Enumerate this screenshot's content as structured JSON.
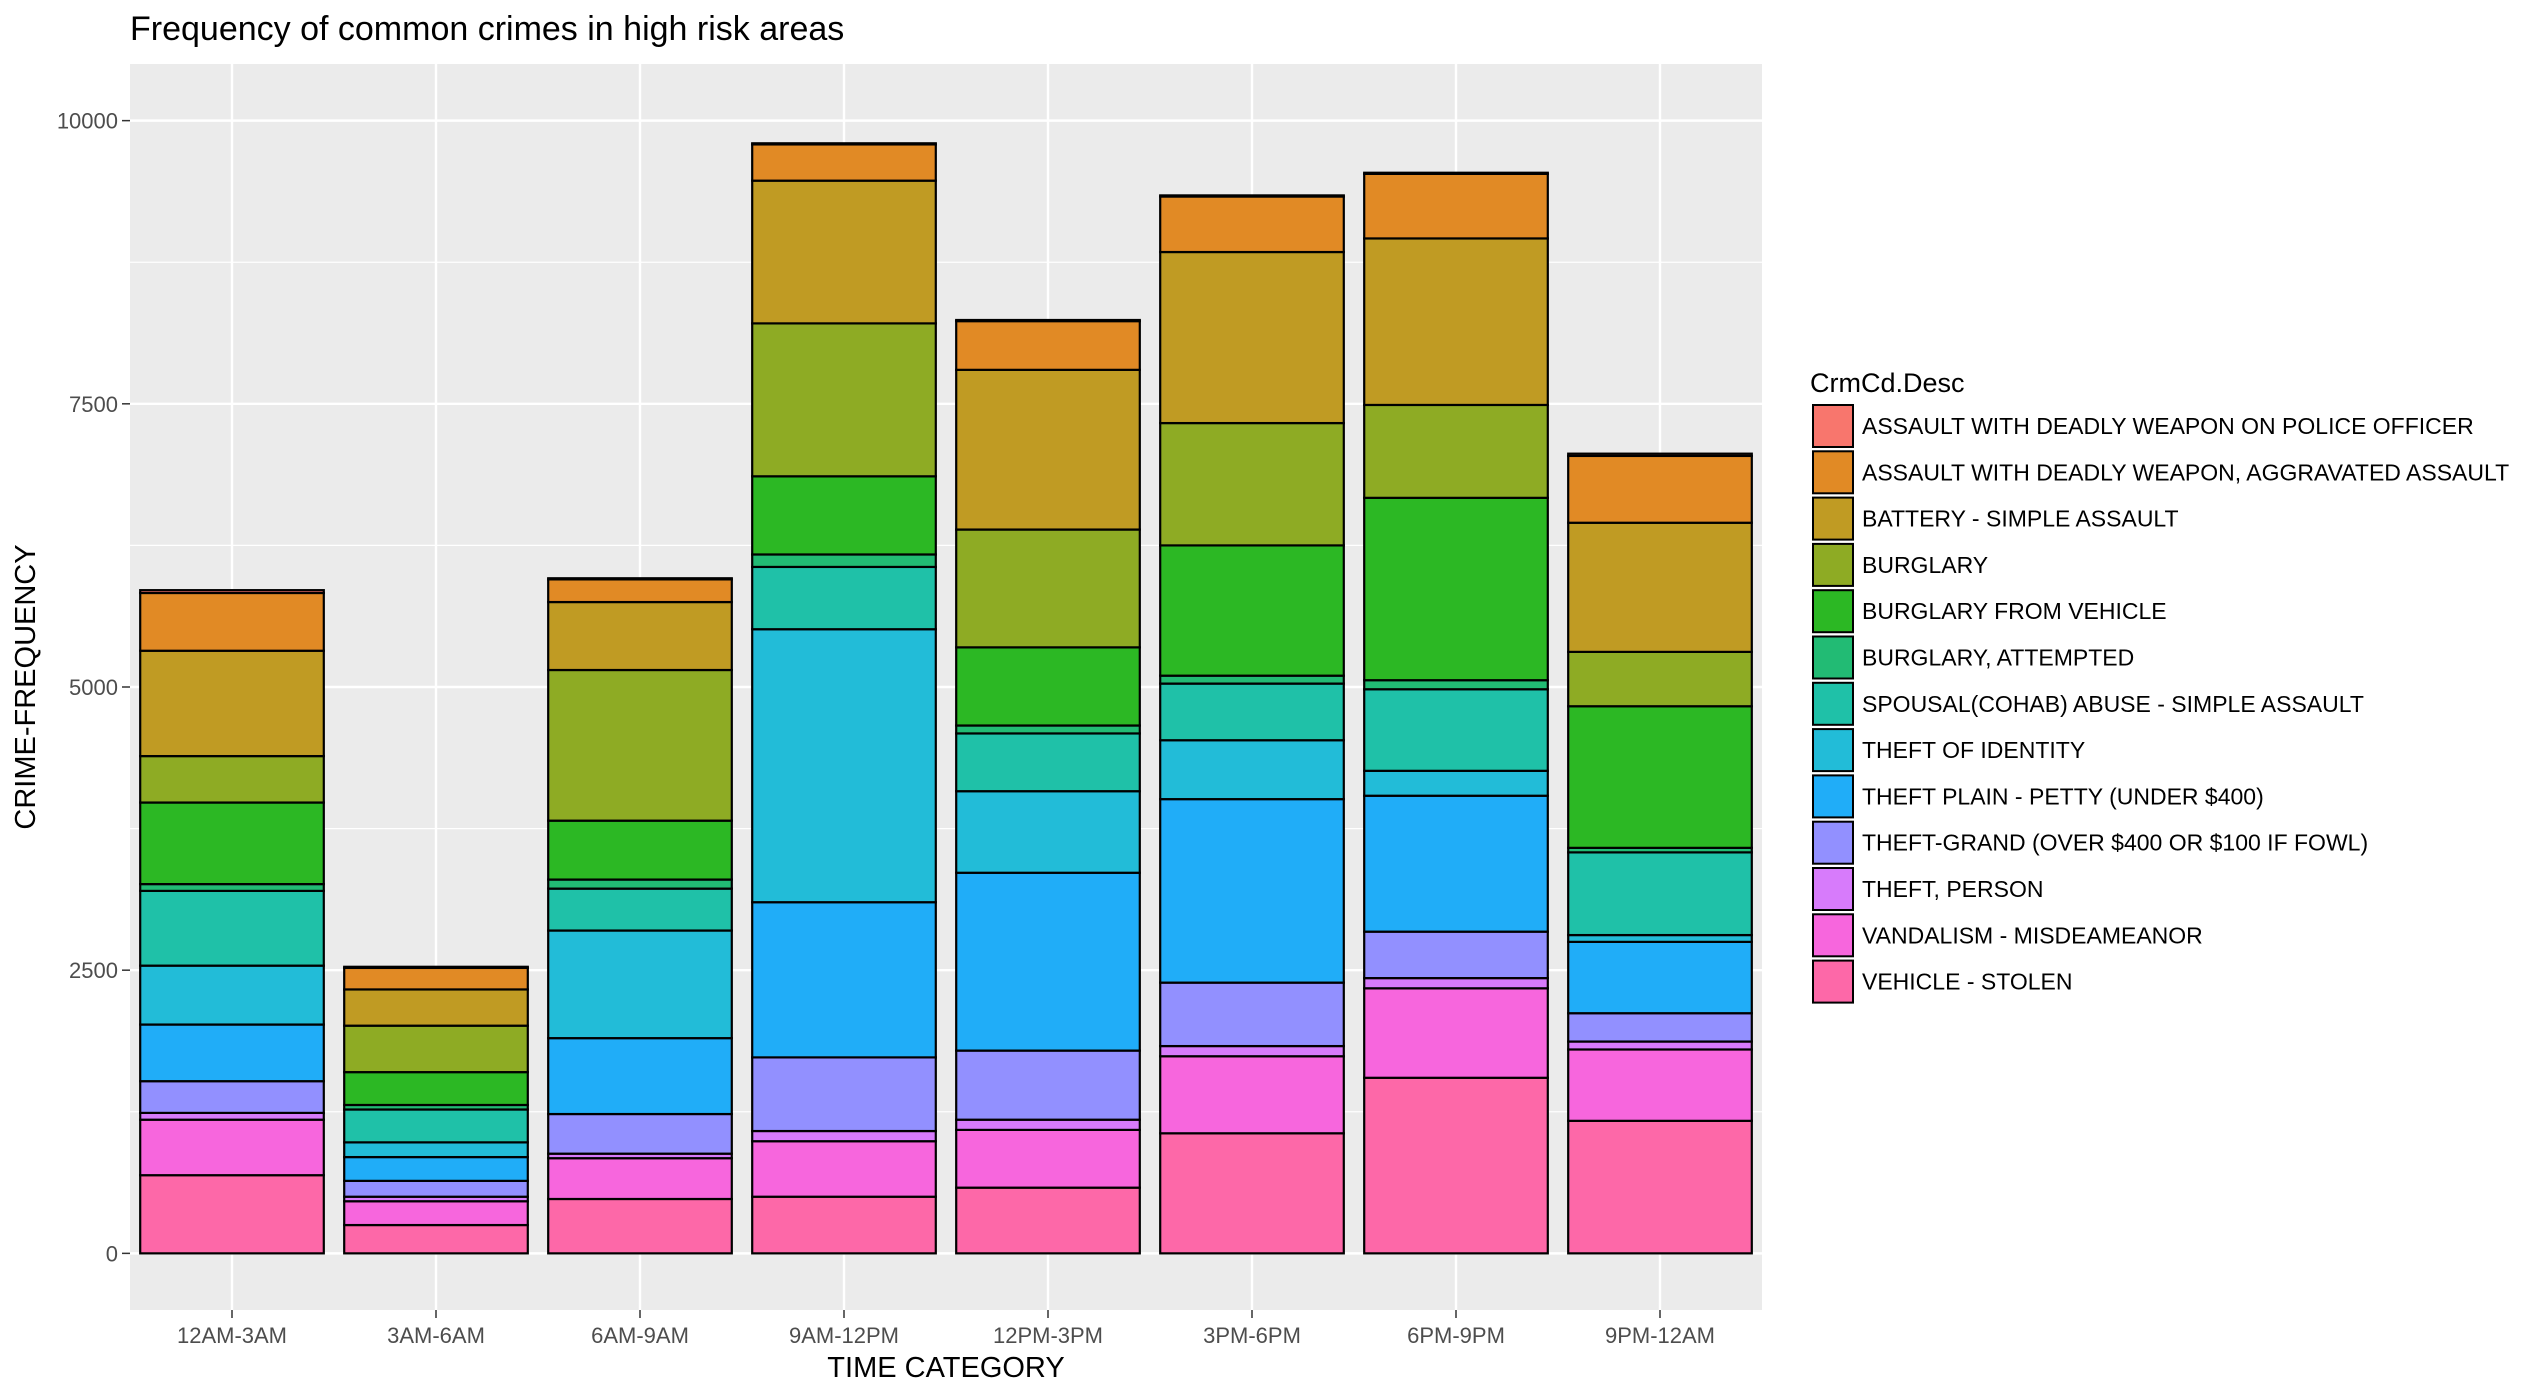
{
  "chart_data": {
    "type": "bar",
    "stacked": true,
    "title": "Frequency of common crimes in high risk areas",
    "xlabel": "TIME CATEGORY",
    "ylabel": "CRIME-FREQUENCY",
    "ylim": [
      -500,
      10500
    ],
    "yticks": [
      0,
      2500,
      5000,
      7500,
      10000
    ],
    "yticklabels": [
      "0",
      "2500",
      "5000",
      "7500",
      "10000"
    ],
    "grid": true,
    "legend": {
      "title": "CrmCd.Desc",
      "position": "right"
    },
    "categories": [
      "12AM-3AM",
      "3AM-6AM",
      "6AM-9AM",
      "9AM-12PM",
      "12PM-3PM",
      "3PM-6PM",
      "6PM-9PM",
      "9PM-12AM"
    ],
    "series": [
      {
        "name": "ASSAULT WITH DEADLY WEAPON ON POLICE OFFICER",
        "color": "#F8766D",
        "values": [
          25,
          10,
          10,
          10,
          10,
          10,
          10,
          20
        ]
      },
      {
        "name": "ASSAULT WITH DEADLY WEAPON, AGGRAVATED ASSAULT",
        "color": "#E18A25",
        "values": [
          510,
          190,
          200,
          320,
          430,
          490,
          570,
          590
        ]
      },
      {
        "name": "BATTERY - SIMPLE ASSAULT",
        "color": "#C09B23",
        "values": [
          930,
          320,
          600,
          1260,
          1410,
          1510,
          1470,
          1140
        ]
      },
      {
        "name": "BURGLARY",
        "color": "#8EAB24",
        "values": [
          410,
          410,
          1330,
          1350,
          1040,
          1080,
          820,
          480
        ]
      },
      {
        "name": "BURGLARY FROM VEHICLE",
        "color": "#2CB824",
        "values": [
          720,
          290,
          520,
          690,
          690,
          1150,
          1610,
          1250
        ]
      },
      {
        "name": "BURGLARY, ATTEMPTED",
        "color": "#22BB74",
        "values": [
          60,
          40,
          80,
          110,
          70,
          70,
          80,
          40
        ]
      },
      {
        "name": "SPOUSAL(COHAB) ABUSE - SIMPLE ASSAULT",
        "color": "#1FC1A8",
        "values": [
          660,
          290,
          370,
          550,
          510,
          500,
          720,
          730
        ]
      },
      {
        "name": "THEFT OF IDENTITY",
        "color": "#22BCD8",
        "values": [
          520,
          130,
          950,
          2410,
          720,
          520,
          220,
          60
        ]
      },
      {
        "name": "THEFT PLAIN - PETTY (UNDER $400)",
        "color": "#20ADF8",
        "values": [
          500,
          210,
          670,
          1370,
          1570,
          1620,
          1200,
          630
        ]
      },
      {
        "name": "THEFT-GRAND (OVER $400 OR $100 IF FOWL)",
        "color": "#9290FF",
        "values": [
          280,
          140,
          350,
          650,
          610,
          560,
          410,
          250
        ]
      },
      {
        "name": "THEFT, PERSON",
        "color": "#D77BFB",
        "values": [
          60,
          40,
          40,
          90,
          90,
          90,
          90,
          70
        ]
      },
      {
        "name": "VANDALISM - MISDEAMEANOR",
        "color": "#F766DD",
        "values": [
          490,
          210,
          360,
          490,
          510,
          680,
          790,
          630
        ]
      },
      {
        "name": "VEHICLE - STOLEN",
        "color": "#FD68A8",
        "values": [
          690,
          250,
          480,
          500,
          580,
          1060,
          1550,
          1170
        ]
      }
    ]
  }
}
